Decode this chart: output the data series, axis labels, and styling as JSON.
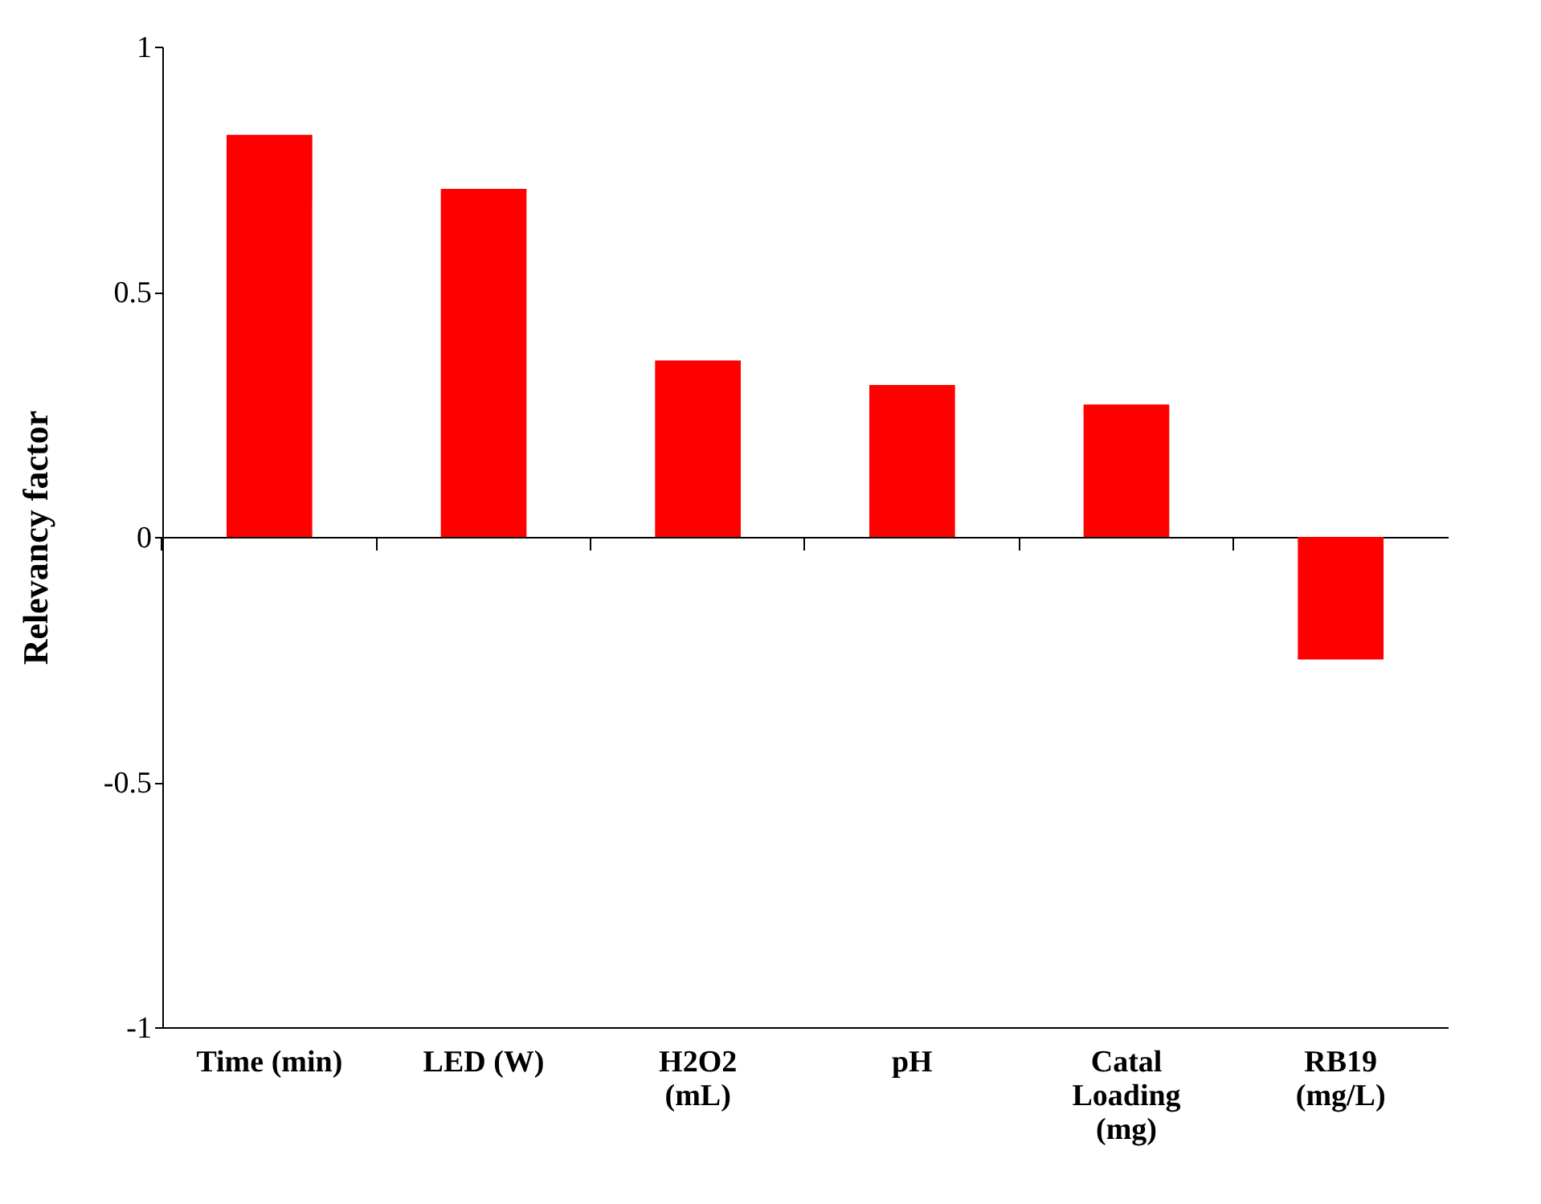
{
  "chart_data": {
    "type": "bar",
    "ylabel": "Relevancy  factor",
    "categories": [
      "Time (min)",
      "LED (W)",
      "H2O2\n(mL)",
      "pH",
      "Catal\nLoading\n(mg)",
      "RB19\n(mg/L)"
    ],
    "values": [
      0.82,
      0.71,
      0.36,
      0.31,
      0.27,
      -0.25
    ],
    "color": "#ff0000",
    "ylim": [
      -1,
      1
    ],
    "yticks": [
      -1,
      -0.5,
      0,
      0.5,
      1
    ]
  }
}
